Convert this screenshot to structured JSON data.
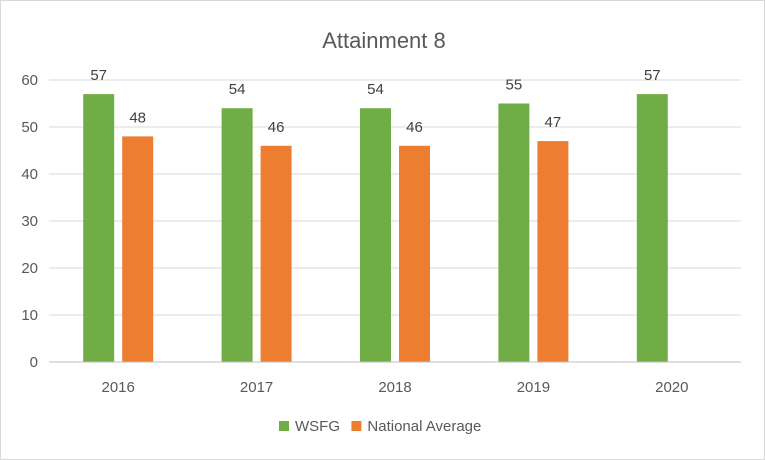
{
  "chart_data": {
    "type": "bar",
    "title": "Attainment 8",
    "xlabel": "",
    "ylabel": "",
    "categories": [
      "2016",
      "2017",
      "2018",
      "2019",
      "2020"
    ],
    "series": [
      {
        "name": "WSFG",
        "values": [
          57,
          54,
          54,
          55,
          57
        ],
        "color": "#70ad47"
      },
      {
        "name": "National Average",
        "values": [
          48,
          46,
          46,
          47,
          null
        ],
        "color": "#ed7d31"
      }
    ],
    "ylim": [
      0,
      60
    ],
    "yticks": [
      0,
      10,
      20,
      30,
      40,
      50,
      60
    ],
    "grid": true,
    "legend": "bottom",
    "data_labels": true
  }
}
